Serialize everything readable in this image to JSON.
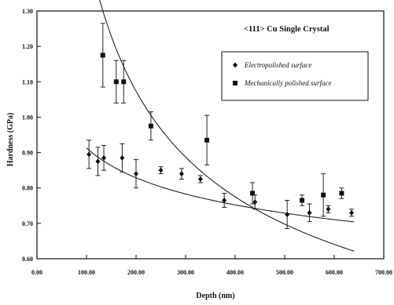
{
  "chart_data": {
    "type": "scatter",
    "annotation": "<111> Cu Single Crystal",
    "xlabel": "Depth (nm)",
    "ylabel": "Hardness (GPa)",
    "xlim": [
      0,
      700
    ],
    "ylim": [
      0.6,
      1.3
    ],
    "x_ticks": [
      "0.00",
      "100.00",
      "200.00",
      "300.00",
      "400.00",
      "500.00",
      "600.00",
      "700.00"
    ],
    "y_ticks": [
      "0.60",
      "0.70",
      "0.80",
      "0.90",
      "1.00",
      "1.10",
      "1.20",
      "1.30"
    ],
    "grid": false,
    "legend_position": "upper-right",
    "series": [
      {
        "name": "Electropolished surface",
        "marker": "diamond",
        "points": [
          {
            "x": 105,
            "y": 0.895,
            "err": 0.04
          },
          {
            "x": 123,
            "y": 0.875,
            "err": 0.04
          },
          {
            "x": 135,
            "y": 0.885,
            "err": 0.035
          },
          {
            "x": 172,
            "y": 0.885,
            "err": 0.04
          },
          {
            "x": 200,
            "y": 0.84,
            "err": 0.04
          },
          {
            "x": 250,
            "y": 0.85,
            "err": 0.01
          },
          {
            "x": 292,
            "y": 0.84,
            "err": 0.015
          },
          {
            "x": 330,
            "y": 0.825,
            "err": 0.01
          },
          {
            "x": 378,
            "y": 0.765,
            "err": 0.02
          },
          {
            "x": 440,
            "y": 0.76,
            "err": 0.02
          },
          {
            "x": 505,
            "y": 0.725,
            "err": 0.04
          },
          {
            "x": 550,
            "y": 0.73,
            "err": 0.025
          },
          {
            "x": 588,
            "y": 0.74,
            "err": 0.01
          },
          {
            "x": 635,
            "y": 0.73,
            "err": 0.01
          }
        ],
        "fit": {
          "type": "power",
          "a": 1.74,
          "b": -0.14
        }
      },
      {
        "name": "Mechanically polished surface",
        "marker": "square",
        "points": [
          {
            "x": 133,
            "y": 1.175,
            "err": 0.09
          },
          {
            "x": 160,
            "y": 1.1,
            "err": 0.06
          },
          {
            "x": 175,
            "y": 1.1,
            "err": 0.06
          },
          {
            "x": 230,
            "y": 0.975,
            "err": 0.04
          },
          {
            "x": 343,
            "y": 0.935,
            "err": 0.07
          },
          {
            "x": 435,
            "y": 0.785,
            "err": 0.03
          },
          {
            "x": 535,
            "y": 0.765,
            "err": 0.015
          },
          {
            "x": 578,
            "y": 0.78,
            "err": 0.06
          },
          {
            "x": 615,
            "y": 0.785,
            "err": 0.015
          }
        ],
        "fit": {
          "type": "power",
          "a": 12.95,
          "b": -0.47
        }
      }
    ]
  }
}
